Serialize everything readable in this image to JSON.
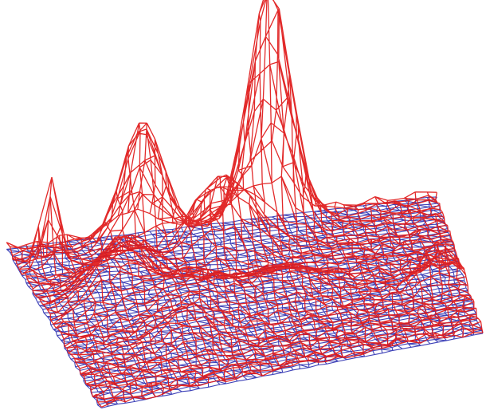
{
  "chart_data": {
    "type": "surface-wireframe",
    "title": "",
    "xlabel": "",
    "ylabel": "",
    "zlabel": "",
    "grid": false,
    "legend": "none",
    "layers": [
      {
        "role": "base-plane",
        "color": "#2a2fb0",
        "height": 0
      },
      {
        "role": "surface",
        "color": "#e01818"
      }
    ],
    "peaks": [
      {
        "u": 0.6,
        "v": 0.08,
        "height": 1.0,
        "width": 0.05
      },
      {
        "u": 0.3,
        "v": 0.1,
        "height": 0.52,
        "width": 0.05
      },
      {
        "u": 0.43,
        "v": 0.25,
        "height": 0.22,
        "width": 0.06
      },
      {
        "u": 0.5,
        "v": 0.22,
        "height": 0.2,
        "width": 0.06
      },
      {
        "u": 0.22,
        "v": 0.32,
        "height": 0.18,
        "width": 0.06
      },
      {
        "u": 0.07,
        "v": 0.15,
        "height": 0.45,
        "width": 0.02
      },
      {
        "u": 0.16,
        "v": 0.45,
        "height": 0.2,
        "width": 0.07
      },
      {
        "u": 0.34,
        "v": 0.55,
        "height": 0.16,
        "width": 0.08
      },
      {
        "u": 0.56,
        "v": 0.55,
        "height": 0.12,
        "width": 0.08
      },
      {
        "u": 0.93,
        "v": 0.62,
        "height": 0.16,
        "width": 0.04
      },
      {
        "u": 0.28,
        "v": 0.72,
        "height": 0.1,
        "width": 0.07
      }
    ]
  }
}
